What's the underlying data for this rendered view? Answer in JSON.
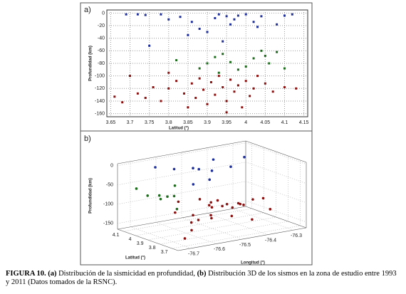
{
  "chart_data": [
    {
      "type": "scatter",
      "panel_label": "a)",
      "x_label": "Latitud (°)",
      "y_label": "Profundidad (km)",
      "xlim": [
        3.64,
        4.16
      ],
      "ylim": [
        -165,
        5
      ],
      "xticks": [
        3.65,
        3.7,
        3.75,
        3.8,
        3.85,
        3.9,
        3.95,
        4,
        4.05,
        4.1,
        4.15
      ],
      "yticks": [
        0,
        -20,
        -40,
        -60,
        -80,
        -100,
        -120,
        -140,
        -160
      ],
      "grid": true,
      "series": [
        {
          "color": "#1f2f9a",
          "x": [
            3.69,
            3.72,
            3.74,
            3.78,
            3.8,
            3.83,
            3.86,
            3.88,
            3.9,
            3.92,
            3.93,
            3.95,
            3.96,
            3.97,
            3.98,
            4.0,
            4.02,
            4.04,
            4.08,
            4.1,
            4.12,
            3.75,
            3.94,
            3.85,
            4.03
          ],
          "values": [
            -2,
            -2,
            -3,
            -2,
            -10,
            -6,
            -14,
            -25,
            -30,
            -8,
            -2,
            -5,
            -18,
            -10,
            -4,
            -2,
            -14,
            -5,
            -18,
            -4,
            -2,
            -52,
            -45,
            -35,
            -22
          ]
        },
        {
          "color": "#1d6a1d",
          "x": [
            3.82,
            3.88,
            3.9,
            3.92,
            3.94,
            3.96,
            3.98,
            4.0,
            4.02,
            4.04,
            4.05,
            4.06,
            4.08,
            4.1,
            3.93
          ],
          "values": [
            -75,
            -88,
            -80,
            -70,
            -65,
            -78,
            -90,
            -85,
            -72,
            -60,
            -68,
            -80,
            -62,
            -88,
            -95
          ]
        },
        {
          "color": "#8b1010",
          "x": [
            3.66,
            3.68,
            3.72,
            3.74,
            3.76,
            3.78,
            3.8,
            3.82,
            3.84,
            3.85,
            3.86,
            3.87,
            3.88,
            3.89,
            3.9,
            3.91,
            3.92,
            3.93,
            3.94,
            3.95,
            3.96,
            3.97,
            3.98,
            3.99,
            4.0,
            4.01,
            4.02,
            4.03,
            4.05,
            4.07,
            4.1,
            4.13,
            3.95,
            3.7,
            3.8
          ],
          "values": [
            -133,
            -142,
            -128,
            -135,
            -118,
            -140,
            -120,
            -108,
            -128,
            -150,
            -112,
            -135,
            -104,
            -122,
            -145,
            -110,
            -130,
            -100,
            -118,
            -140,
            -106,
            -125,
            -115,
            -150,
            -108,
            -132,
            -120,
            -100,
            -112,
            -125,
            -118,
            -120,
            -158,
            -100,
            -95
          ]
        }
      ]
    },
    {
      "type": "scatter3d",
      "panel_label": "b)",
      "x_label": "Longitud (°)",
      "y_label": "Latitud (°)",
      "z_label": "Profundidad (km)",
      "xlim": [
        -76.75,
        -76.25
      ],
      "ylim": [
        3.65,
        4.15
      ],
      "zlim": [
        -165,
        5
      ],
      "xticks": [
        -76.7,
        -76.6,
        -76.5,
        -76.4,
        -76.3
      ],
      "yticks": [
        3.7,
        3.8,
        3.9,
        4,
        4.1
      ],
      "zticks": [
        0,
        -50,
        -100,
        -150
      ],
      "grid": true,
      "series": [
        {
          "color": "#1f2f9a",
          "x": [
            -76.65,
            -76.6,
            -76.55,
            -76.5,
            -76.45,
            -76.4,
            -76.58,
            -76.35,
            -76.62,
            -76.48
          ],
          "y": [
            4.05,
            4.0,
            3.95,
            3.9,
            3.85,
            4.1,
            3.75,
            3.95,
            3.8,
            4.05
          ],
          "values": [
            -5,
            -10,
            -8,
            -15,
            -5,
            -20,
            -12,
            -3,
            -25,
            -30
          ]
        },
        {
          "color": "#1d6a1d",
          "x": [
            -76.7,
            -76.68,
            -76.65,
            -76.62,
            -76.7,
            -76.6,
            -76.66,
            -76.55
          ],
          "y": [
            4.1,
            4.05,
            3.95,
            4.08,
            3.9,
            4.0,
            3.85,
            4.1
          ],
          "values": [
            -60,
            -75,
            -70,
            -85,
            -65,
            -80,
            -90,
            -70
          ]
        },
        {
          "color": "#8b1010",
          "x": [
            -76.5,
            -76.48,
            -76.45,
            -76.52,
            -76.42,
            -76.4,
            -76.47,
            -76.55,
            -76.5,
            -76.44,
            -76.38,
            -76.35,
            -76.58,
            -76.6,
            -76.65,
            -76.7,
            -76.62,
            -76.46,
            -76.53,
            -76.4,
            -76.32,
            -76.3,
            -76.56,
            -76.49,
            -76.43
          ],
          "y": [
            3.9,
            3.95,
            3.92,
            3.88,
            3.9,
            3.85,
            3.8,
            3.95,
            4.0,
            3.98,
            3.92,
            3.88,
            3.9,
            3.8,
            3.75,
            3.7,
            3.95,
            3.86,
            3.84,
            3.78,
            3.8,
            3.9,
            4.05,
            3.93,
            3.83
          ],
          "values": [
            -110,
            -105,
            -115,
            -100,
            -120,
            -110,
            -125,
            -130,
            -100,
            -108,
            -118,
            -105,
            -140,
            -120,
            -135,
            -145,
            -115,
            -102,
            -128,
            -140,
            -125,
            -110,
            -105,
            -135,
            -100
          ]
        }
      ]
    }
  ],
  "caption": {
    "figure": "FIGURA 10.",
    "a": "(a)",
    "a_text": "Distribución de la sismicidad en profundidad,",
    "b": "(b)",
    "b_text": "Distribución 3D de los sismos en la zona de estudio entre 1993 y 2011 (Datos tomados de la RSNC)."
  }
}
